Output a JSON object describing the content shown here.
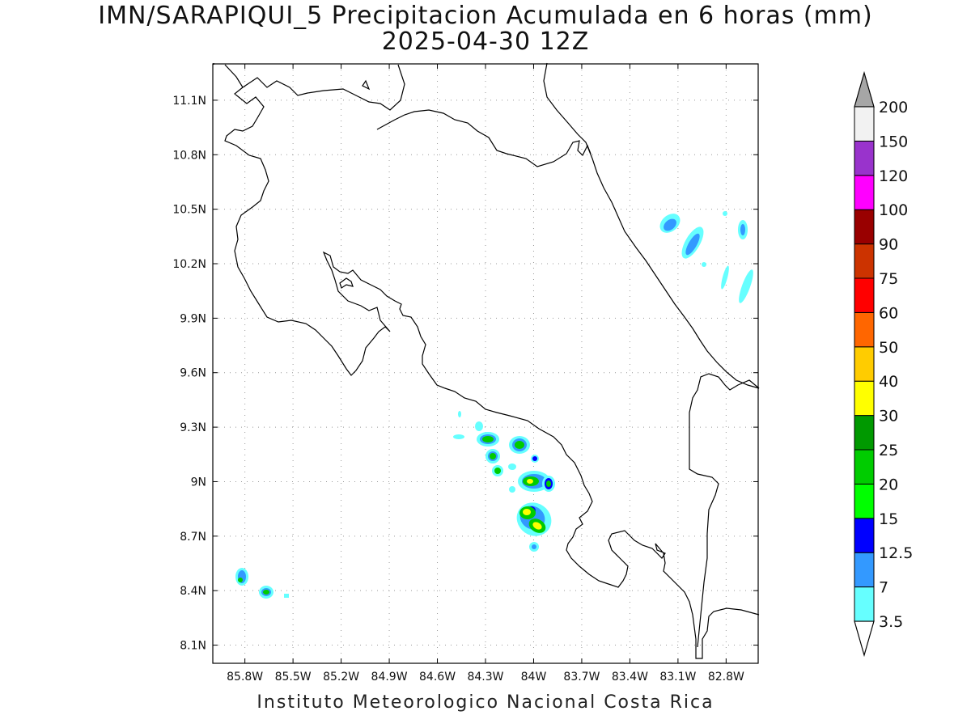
{
  "title": {
    "line1": "IMN/SARAPIQUI_5 Precipitacion Acumulada en 6 horas (mm)",
    "line2": "2025-04-30 12Z"
  },
  "footer": "Instituto Meteorologico Nacional Costa Rica",
  "map": {
    "lon_range": [
      -86.0,
      -82.6
    ],
    "lat_range": [
      8.0,
      11.3
    ],
    "lon_ticks": [
      {
        "value": -85.8,
        "label": "85.8W"
      },
      {
        "value": -85.5,
        "label": "85.5W"
      },
      {
        "value": -85.2,
        "label": "85.2W"
      },
      {
        "value": -84.9,
        "label": "84.9W"
      },
      {
        "value": -84.6,
        "label": "84.6W"
      },
      {
        "value": -84.3,
        "label": "84.3W"
      },
      {
        "value": -84.0,
        "label": "84W"
      },
      {
        "value": -83.7,
        "label": "83.7W"
      },
      {
        "value": -83.4,
        "label": "83.4W"
      },
      {
        "value": -83.1,
        "label": "83.1W"
      },
      {
        "value": -82.8,
        "label": "82.8W"
      }
    ],
    "lat_ticks": [
      {
        "value": 11.1,
        "label": "11.1N"
      },
      {
        "value": 10.8,
        "label": "10.8N"
      },
      {
        "value": 10.5,
        "label": "10.5N"
      },
      {
        "value": 10.2,
        "label": "10.2N"
      },
      {
        "value": 9.9,
        "label": "9.9N"
      },
      {
        "value": 9.6,
        "label": "9.6N"
      },
      {
        "value": 9.3,
        "label": "9.3N"
      },
      {
        "value": 9.0,
        "label": "9N"
      },
      {
        "value": 8.7,
        "label": "8.7N"
      },
      {
        "value": 8.4,
        "label": "8.4N"
      },
      {
        "value": 8.1,
        "label": "8.1N"
      }
    ],
    "grid": true
  },
  "colorbar": {
    "labels": [
      "3.5",
      "7",
      "12.5",
      "15",
      "20",
      "25",
      "30",
      "40",
      "50",
      "60",
      "75",
      "90",
      "100",
      "120",
      "150",
      "200"
    ],
    "colors": [
      "#66ffff",
      "#3399ff",
      "#0000ff",
      "#00ff00",
      "#00cc00",
      "#009900",
      "#ffff00",
      "#ffcc00",
      "#ff6600",
      "#ff0000",
      "#cc3300",
      "#990000",
      "#ff00ff",
      "#9933cc",
      "#f2f2f2"
    ],
    "over_color": "#a6a6a6",
    "under_color": "#ffffff"
  }
}
